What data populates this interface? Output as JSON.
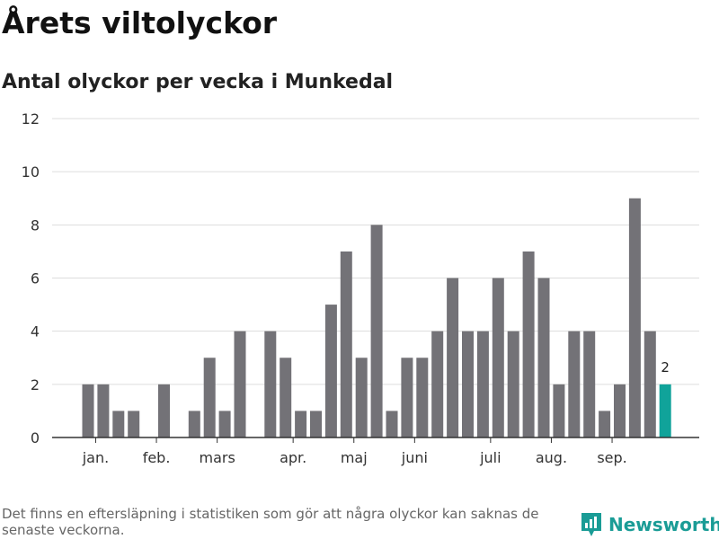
{
  "header": {
    "title": "Årets viltolyckor",
    "subtitle": "Antal olyckor per vecka i Munkedal"
  },
  "footer": {
    "note": "Det finns en eftersläpning i statistiken som gör att några olyckor kan saknas de senaste veckorna.",
    "brand": "Newsworthy",
    "brand_icon": "newsworthy-logo-icon"
  },
  "colors": {
    "bar": "#737277",
    "highlight": "#10a39a",
    "grid": "#dddddd",
    "axis": "#333333",
    "brand": "#1a9c96"
  },
  "chart_data": {
    "type": "bar",
    "title": "Årets viltolyckor",
    "subtitle": "Antal olyckor per vecka i Munkedal",
    "xlabel": "",
    "ylabel": "",
    "ylim": [
      0,
      12
    ],
    "yticks": [
      0,
      2,
      4,
      6,
      8,
      10,
      12
    ],
    "grid": true,
    "x_unit": "week",
    "weeks": [
      1,
      2,
      3,
      4,
      5,
      6,
      7,
      8,
      9,
      10,
      11,
      12,
      13,
      14,
      15,
      16,
      17,
      18,
      19,
      20,
      21,
      22,
      23,
      24,
      25,
      26,
      27,
      28,
      29,
      30,
      31,
      32,
      33,
      34,
      35,
      36,
      37,
      38,
      39,
      40
    ],
    "values": [
      2,
      2,
      1,
      1,
      0,
      2,
      0,
      1,
      3,
      1,
      4,
      0,
      4,
      3,
      1,
      1,
      5,
      7,
      3,
      8,
      1,
      3,
      3,
      4,
      6,
      4,
      4,
      6,
      4,
      7,
      6,
      2,
      4,
      4,
      1,
      2,
      9,
      4,
      2,
      0
    ],
    "highlight_index": 38,
    "highlight_label": "2",
    "month_labels": [
      {
        "label": "jan.",
        "week": 1.5
      },
      {
        "label": "feb.",
        "week": 5.5
      },
      {
        "label": "mars",
        "week": 9.5
      },
      {
        "label": "apr.",
        "week": 14.5
      },
      {
        "label": "maj",
        "week": 18.5
      },
      {
        "label": "juni",
        "week": 22.5
      },
      {
        "label": "juli",
        "week": 27.5
      },
      {
        "label": "aug.",
        "week": 31.5
      },
      {
        "label": "sep.",
        "week": 35.5
      }
    ]
  }
}
